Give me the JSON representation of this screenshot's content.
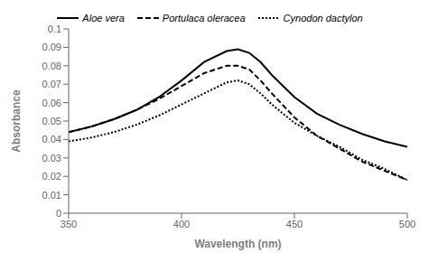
{
  "chart_data": {
    "type": "line",
    "xlabel": "Wavelength (nm)",
    "ylabel": "Absorbance",
    "x": [
      350,
      360,
      370,
      380,
      390,
      400,
      410,
      420,
      425,
      430,
      435,
      440,
      450,
      460,
      470,
      480,
      490,
      500
    ],
    "series": [
      {
        "name": "Aloe vera",
        "color": "#000000",
        "line_style": "solid",
        "values": [
          0.044,
          0.047,
          0.051,
          0.056,
          0.063,
          0.072,
          0.082,
          0.088,
          0.089,
          0.087,
          0.082,
          0.075,
          0.063,
          0.054,
          0.048,
          0.043,
          0.039,
          0.036
        ]
      },
      {
        "name": "Portulaca oleracea",
        "color": "#000000",
        "line_style": "dashed",
        "values": [
          0.044,
          0.047,
          0.051,
          0.056,
          0.062,
          0.069,
          0.076,
          0.08,
          0.08,
          0.078,
          0.072,
          0.065,
          0.052,
          0.042,
          0.035,
          0.028,
          0.023,
          0.018
        ]
      },
      {
        "name": "Cynodon dactylon",
        "color": "#000000",
        "line_style": "dotted",
        "values": [
          0.039,
          0.041,
          0.044,
          0.048,
          0.053,
          0.059,
          0.065,
          0.071,
          0.072,
          0.07,
          0.065,
          0.059,
          0.049,
          0.042,
          0.036,
          0.029,
          0.024,
          0.018
        ]
      }
    ],
    "xlim": [
      350,
      500
    ],
    "ylim": [
      0,
      0.1
    ],
    "xticks": [
      350,
      400,
      450,
      500
    ],
    "yticks": [
      0,
      0.01,
      0.02,
      0.03,
      0.04,
      0.05,
      0.06,
      0.07,
      0.08,
      0.09,
      0.1
    ],
    "grid": false,
    "legend": "top"
  }
}
